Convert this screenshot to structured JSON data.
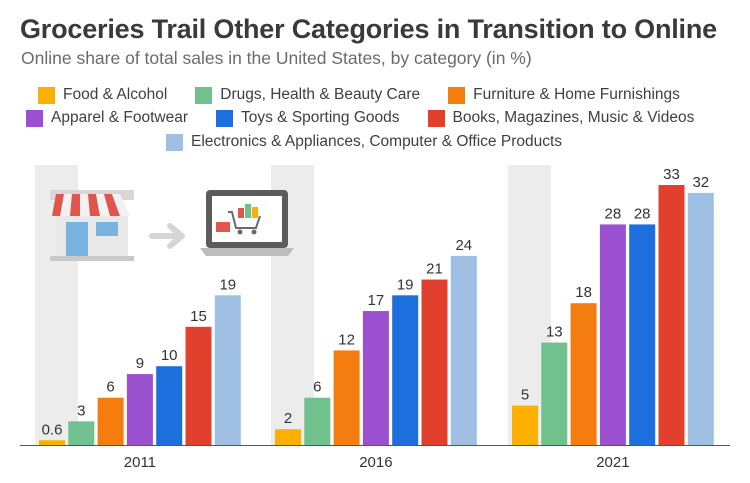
{
  "chart_data": {
    "type": "bar",
    "title": "Groceries Trail Other Categories in Transition to Online",
    "subtitle": "Online share of total sales in the United States, by category (in %)",
    "xlabel": "",
    "ylabel": "",
    "ylim": [
      0,
      35
    ],
    "categories": [
      "2011",
      "2016",
      "2021"
    ],
    "series": [
      {
        "name": "Food & Alcohol",
        "color": "#fbb000",
        "values": [
          0.6,
          2,
          5
        ],
        "labels": [
          "0.6",
          "2",
          "5"
        ]
      },
      {
        "name": "Drugs, Health & Beauty Care",
        "color": "#71c18f",
        "values": [
          3,
          6,
          13
        ],
        "labels": [
          "3",
          "6",
          "13"
        ]
      },
      {
        "name": "Furniture & Home Furnishings",
        "color": "#f57c0f",
        "values": [
          6,
          12,
          18
        ],
        "labels": [
          "6",
          "12",
          "18"
        ]
      },
      {
        "name": "Apparel & Footwear",
        "color": "#9b51cf",
        "values": [
          9,
          17,
          28
        ],
        "labels": [
          "9",
          "17",
          "28"
        ]
      },
      {
        "name": "Toys & Sporting Goods",
        "color": "#1c6fdd",
        "values": [
          10,
          19,
          28
        ],
        "labels": [
          "10",
          "19",
          "28"
        ]
      },
      {
        "name": "Books, Magazines, Music & Videos",
        "color": "#e0402c",
        "values": [
          15,
          21,
          33
        ],
        "labels": [
          "15",
          "21",
          "33"
        ]
      },
      {
        "name": "Electronics & Appliances, Computer & Office Products",
        "color": "#9fc0e3",
        "values": [
          19,
          24,
          32
        ],
        "labels": [
          "19",
          "24",
          "32"
        ]
      }
    ]
  },
  "colors": {
    "group_background": "#ececec",
    "baseline": "#555555",
    "label_text": "#333333"
  },
  "icons": [
    "storefront-icon",
    "arrow-right-icon",
    "laptop-shopping-cart-icon"
  ]
}
